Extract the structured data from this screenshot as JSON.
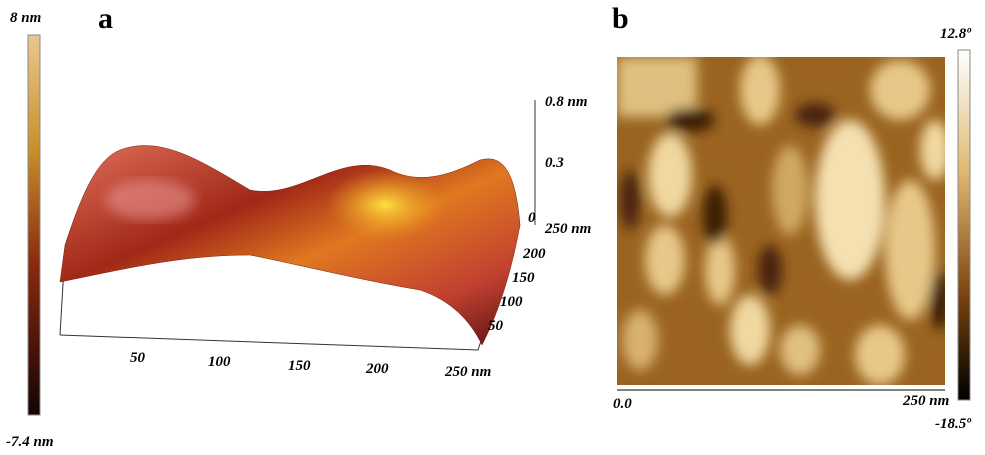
{
  "panel_a": {
    "label": "a",
    "colorbar": {
      "max": "8 nm",
      "min": "-7.4 nm"
    },
    "z_ticks": [
      "0.8 nm",
      "0.3",
      "0"
    ],
    "y_ticks": [
      "250 nm",
      "200",
      "150",
      "100",
      "50"
    ],
    "x_ticks": [
      "50",
      "100",
      "150",
      "200",
      "250 nm"
    ]
  },
  "panel_b": {
    "label": "b",
    "colorbar": {
      "max": "12.8º",
      "min": "-18.5º"
    },
    "x_ticks": [
      "0.0",
      "250 nm"
    ]
  }
}
